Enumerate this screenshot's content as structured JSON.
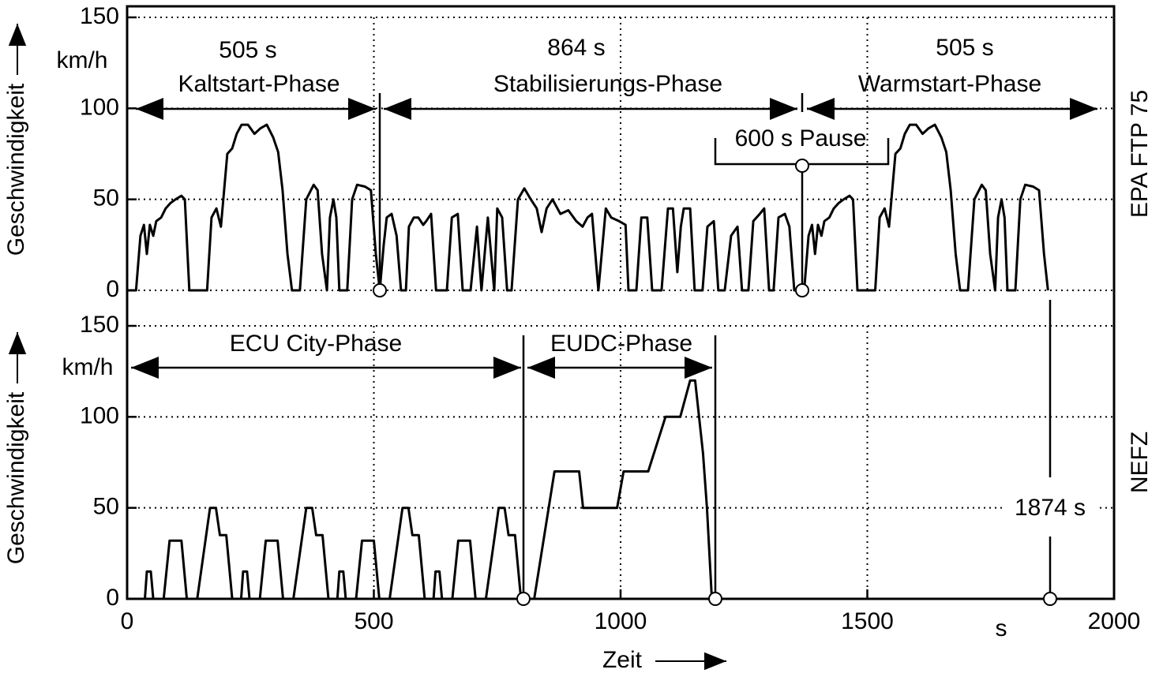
{
  "chart_data": [
    {
      "type": "line",
      "y_label": "Geschwindigkeit",
      "y_unit": "km/h",
      "side_label": "EPA FTP 75",
      "annotations": [
        "505 s",
        "Kaltstart-Phase",
        "864 s",
        "Stabilisierungs-Phase",
        "505 s",
        "Warmstart-Phase",
        "600 s Pause"
      ],
      "xlim": [
        0,
        2000
      ],
      "xticks": [
        0,
        500,
        1000,
        1500,
        2000
      ],
      "ylim": [
        0,
        150
      ],
      "yticks": [
        0,
        50,
        100,
        150
      ],
      "grid": true,
      "color": "#000000",
      "x": [
        0,
        18,
        27,
        34,
        40,
        46,
        53,
        59,
        69,
        78,
        88,
        98,
        110,
        117,
        126,
        162,
        171,
        181,
        190,
        203,
        213,
        222,
        232,
        245,
        258,
        270,
        283,
        296,
        306,
        315,
        325,
        334,
        350,
        363,
        378,
        386,
        395,
        405,
        411,
        418,
        424,
        430,
        446,
        456,
        466,
        482,
        494,
        504,
        512,
        520,
        526,
        536,
        546,
        555,
        565,
        571,
        581,
        590,
        600,
        606,
        616,
        626,
        648,
        658,
        670,
        680,
        696,
        709,
        718,
        731,
        744,
        750,
        760,
        770,
        779,
        792,
        805,
        818,
        830,
        840,
        850,
        862,
        878,
        894,
        910,
        923,
        933,
        942,
        955,
        970,
        981,
        997,
        1010,
        1016,
        1032,
        1042,
        1054,
        1064,
        1083,
        1096,
        1106,
        1115,
        1122,
        1128,
        1141,
        1150,
        1166,
        1176,
        1189,
        1198,
        1211,
        1224,
        1237,
        1246,
        1259,
        1269,
        1282,
        1291,
        1301,
        1310,
        1320,
        1333,
        1342,
        1352,
        1368,
        1372,
        1381,
        1388,
        1394,
        1400,
        1407,
        1413,
        1423,
        1432,
        1442,
        1452,
        1464,
        1471,
        1480,
        1516,
        1525,
        1535,
        1544,
        1557,
        1567,
        1576,
        1586,
        1599,
        1612,
        1624,
        1637,
        1650,
        1660,
        1669,
        1679,
        1688,
        1704,
        1717,
        1732,
        1740,
        1749,
        1759,
        1765,
        1772,
        1778,
        1784,
        1800,
        1810,
        1820,
        1836,
        1848,
        1858,
        1866
      ],
      "values": [
        0,
        0,
        30,
        36,
        20,
        36,
        30,
        38,
        40,
        45,
        48,
        50,
        52,
        50,
        0,
        0,
        40,
        45,
        35,
        75,
        78,
        86,
        91,
        91,
        86,
        89,
        91,
        84,
        76,
        55,
        20,
        0,
        0,
        50,
        58,
        55,
        20,
        0,
        40,
        50,
        40,
        0,
        0,
        50,
        58,
        57,
        55,
        20,
        0,
        25,
        40,
        42,
        30,
        0,
        0,
        35,
        40,
        40,
        36,
        38,
        42,
        0,
        0,
        40,
        42,
        0,
        0,
        35,
        0,
        40,
        0,
        45,
        40,
        0,
        0,
        50,
        56,
        50,
        45,
        32,
        45,
        50,
        42,
        44,
        38,
        35,
        40,
        42,
        0,
        45,
        40,
        38,
        36,
        0,
        0,
        40,
        40,
        0,
        0,
        45,
        45,
        10,
        35,
        45,
        45,
        0,
        0,
        35,
        38,
        0,
        0,
        30,
        35,
        0,
        0,
        38,
        42,
        45,
        0,
        0,
        40,
        42,
        35,
        0,
        0,
        0,
        30,
        36,
        20,
        36,
        30,
        38,
        40,
        45,
        48,
        50,
        52,
        50,
        0,
        0,
        40,
        45,
        35,
        75,
        78,
        86,
        91,
        91,
        86,
        89,
        91,
        84,
        76,
        55,
        20,
        0,
        0,
        50,
        58,
        55,
        20,
        0,
        40,
        50,
        40,
        0,
        0,
        50,
        58,
        57,
        55,
        20,
        0
      ]
    },
    {
      "type": "line",
      "y_label": "Geschwindigkeit",
      "y_unit": "km/h",
      "side_label": "NEFZ",
      "x_label": "Zeit",
      "x_unit": "s",
      "annotations": [
        "ECU City-Phase",
        "EUDC-Phase",
        "1874 s"
      ],
      "xlim": [
        0,
        2000
      ],
      "xticks": [
        0,
        500,
        1000,
        1500,
        2000
      ],
      "ylim": [
        0,
        150
      ],
      "yticks": [
        0,
        50,
        100,
        150
      ],
      "grid": true,
      "color": "#000000",
      "x": [
        0,
        36,
        40,
        48,
        53,
        74,
        86,
        110,
        121,
        142,
        168,
        180,
        188,
        201,
        213,
        231,
        235,
        243,
        248,
        269,
        281,
        305,
        316,
        337,
        363,
        375,
        383,
        396,
        408,
        426,
        430,
        438,
        443,
        464,
        476,
        500,
        511,
        532,
        558,
        570,
        578,
        591,
        603,
        621,
        625,
        633,
        638,
        659,
        671,
        695,
        706,
        727,
        753,
        765,
        773,
        786,
        798,
        825,
        866,
        916,
        924,
        993,
        1006,
        1056,
        1091,
        1121,
        1141,
        1151,
        1167,
        1175,
        1185
      ],
      "values": [
        0,
        0,
        15,
        15,
        0,
        0,
        32,
        32,
        0,
        0,
        50,
        50,
        35,
        35,
        0,
        0,
        15,
        15,
        0,
        0,
        32,
        32,
        0,
        0,
        50,
        50,
        35,
        35,
        0,
        0,
        15,
        15,
        0,
        0,
        32,
        32,
        0,
        0,
        50,
        50,
        35,
        35,
        0,
        0,
        15,
        15,
        0,
        0,
        32,
        32,
        0,
        0,
        50,
        50,
        35,
        35,
        0,
        0,
        70,
        70,
        50,
        50,
        70,
        70,
        100,
        100,
        120,
        120,
        80,
        50,
        0
      ]
    }
  ]
}
